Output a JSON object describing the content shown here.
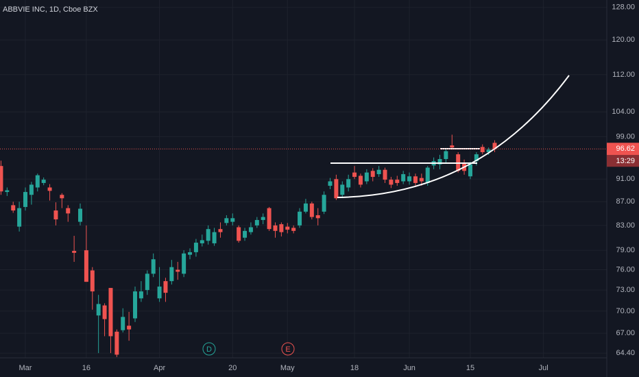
{
  "chart_data": {
    "type": "candlestick",
    "title": "ABBVIE INC, 1D, Cboe BZX",
    "log_scale": true,
    "grid": true,
    "up_color": "#26a69a",
    "down_color": "#ef5350",
    "categories": [
      null,
      null,
      null,
      null,
      "Mar",
      null,
      null,
      null,
      null,
      null,
      null,
      null,
      null,
      null,
      "16",
      null,
      null,
      null,
      null,
      null,
      null,
      null,
      null,
      null,
      null,
      null,
      "Apr",
      null,
      null,
      null,
      null,
      null,
      null,
      null,
      null,
      null,
      null,
      null,
      "20",
      null,
      null,
      null,
      null,
      null,
      null,
      null,
      null,
      "May",
      null,
      null,
      null,
      null,
      null,
      null,
      null,
      null,
      null,
      null,
      "18",
      null,
      null,
      null,
      null,
      null,
      null,
      null,
      null,
      "Jun",
      null,
      null,
      null,
      null,
      null,
      null,
      null,
      null,
      null,
      "15",
      null,
      null,
      null,
      null,
      null,
      null,
      null,
      null,
      null,
      null,
      null,
      "Jul",
      null,
      null,
      null,
      null,
      null,
      null,
      null,
      null,
      null,
      null
    ],
    "open": [
      93.4,
      88.7,
      86.4,
      82.8,
      86.1,
      88.2,
      89.5,
      90.3,
      89.5,
      85.5,
      88.2,
      85.9,
      78.9,
      83.6,
      79.0,
      75.9,
      69.4,
      70.8,
      73.3,
      67.2,
      67.4,
      68.0,
      69.0,
      71.8,
      73.0,
      75.4,
      71.8,
      74.3,
      74.3,
      76.0,
      75.4,
      78.3,
      78.7,
      80.1,
      80.5,
      80.1,
      82.4,
      83.4,
      83.6,
      82.7,
      81.0,
      81.9,
      83.0,
      83.9,
      85.9,
      83.0,
      83.2,
      82.8,
      82.6,
      83.0,
      85.3,
      86.7,
      84.7,
      85.3,
      89.8,
      91.0,
      88.2,
      89.5,
      92.2,
      91.6,
      90.6,
      92.5,
      91.9,
      92.7,
      90.9,
      90.9,
      90.6,
      90.6,
      91.5,
      91.2,
      90.3,
      93.5,
      93.7,
      94.7,
      97.3,
      95.6,
      94.0,
      91.5,
      94.3,
      97.0,
      96.0,
      97.8,
      null,
      null,
      null,
      null,
      null,
      null,
      null,
      null,
      null,
      null,
      null,
      null,
      null,
      null,
      null,
      null,
      null,
      null
    ],
    "high": [
      94.4,
      89.5,
      87.0,
      87.0,
      89.5,
      90.5,
      92.0,
      91.3,
      90.1,
      86.9,
      88.5,
      86.4,
      81.3,
      86.7,
      83.0,
      76.4,
      72.3,
      71.1,
      73.3,
      67.5,
      70.4,
      69.9,
      73.5,
      74.3,
      75.9,
      78.5,
      76.4,
      74.8,
      77.5,
      77.2,
      79.0,
      79.3,
      80.8,
      81.5,
      83.0,
      82.6,
      83.5,
      84.7,
      85.0,
      83.0,
      82.6,
      83.5,
      84.4,
      85.0,
      86.1,
      83.5,
      83.5,
      83.4,
      83.0,
      85.9,
      87.5,
      87.0,
      85.9,
      88.8,
      91.2,
      91.8,
      90.6,
      91.8,
      93.4,
      92.0,
      92.8,
      93.0,
      93.4,
      93.1,
      91.4,
      91.6,
      92.5,
      92.2,
      92.0,
      92.0,
      93.4,
      95.0,
      95.5,
      96.8,
      99.4,
      96.0,
      94.6,
      94.2,
      96.0,
      97.5,
      96.9,
      98.3,
      null,
      null,
      null,
      null,
      null,
      null,
      null,
      null,
      null,
      null,
      null,
      null,
      null,
      null,
      null,
      null,
      null,
      null
    ],
    "low": [
      88.2,
      88.0,
      85.1,
      82.0,
      85.5,
      86.5,
      88.8,
      89.9,
      87.2,
      83.0,
      85.9,
      83.6,
      77.2,
      83.0,
      74.2,
      70.2,
      64.4,
      66.6,
      64.4,
      63.9,
      67.1,
      66.0,
      68.5,
      71.3,
      72.3,
      74.9,
      71.3,
      71.3,
      73.8,
      74.5,
      74.9,
      77.6,
      78.0,
      79.6,
      79.9,
      79.7,
      81.0,
      83.0,
      83.0,
      80.2,
      80.5,
      81.5,
      82.6,
      83.2,
      82.1,
      81.0,
      81.2,
      81.7,
      81.7,
      82.6,
      85.0,
      84.0,
      83.0,
      84.9,
      89.2,
      87.3,
      87.8,
      88.8,
      91.0,
      89.5,
      90.1,
      90.6,
      91.4,
      90.3,
      89.4,
      89.8,
      90.1,
      90.0,
      89.8,
      89.8,
      89.8,
      92.8,
      92.8,
      94.0,
      96.5,
      92.2,
      91.8,
      91.0,
      93.5,
      95.6,
      95.5,
      96.0,
      null,
      null,
      null,
      null,
      null,
      null,
      null,
      null,
      null,
      null,
      null,
      null,
      null,
      null,
      null,
      null,
      null,
      null
    ],
    "close": [
      88.8,
      89.0,
      85.5,
      85.9,
      88.7,
      90.0,
      91.7,
      90.9,
      88.9,
      84.0,
      87.6,
      85.0,
      78.6,
      85.8,
      74.2,
      72.8,
      71.0,
      68.9,
      66.6,
      64.2,
      69.2,
      67.5,
      72.8,
      72.8,
      75.4,
      77.6,
      73.5,
      72.6,
      76.4,
      75.7,
      78.5,
      78.7,
      80.2,
      80.6,
      82.4,
      81.9,
      81.9,
      84.2,
      84.2,
      80.5,
      82.1,
      82.7,
      83.9,
      84.4,
      82.4,
      82.1,
      81.9,
      82.3,
      82.1,
      85.3,
      86.7,
      84.4,
      84.2,
      88.2,
      90.6,
      87.6,
      90.0,
      91.0,
      91.4,
      90.0,
      92.2,
      91.4,
      92.7,
      90.9,
      90.0,
      90.3,
      91.9,
      91.5,
      90.3,
      90.6,
      93.1,
      94.3,
      94.7,
      96.2,
      96.9,
      92.5,
      92.5,
      93.7,
      95.6,
      96.0,
      96.5,
      96.62,
      null,
      null,
      null,
      null,
      null,
      null,
      null,
      null,
      null,
      null,
      null,
      null,
      null,
      null,
      null,
      null,
      null,
      null
    ],
    "ylim": [
      63.8,
      129.9
    ],
    "yticks": [
      {
        "value": 128,
        "label": "128.00"
      },
      {
        "value": 120,
        "label": "120.00"
      },
      {
        "value": 112,
        "label": "112.00"
      },
      {
        "value": 104,
        "label": "104.00"
      },
      {
        "value": 99,
        "label": "99.00"
      },
      {
        "value": 91,
        "label": "91.00"
      },
      {
        "value": 87,
        "label": "87.00"
      },
      {
        "value": 83,
        "label": "83.00"
      },
      {
        "value": 79,
        "label": "79.00"
      },
      {
        "value": 76,
        "label": "76.00"
      },
      {
        "value": 73,
        "label": "73.00"
      },
      {
        "value": 70,
        "label": "70.00"
      },
      {
        "value": 67,
        "label": "67.00"
      },
      {
        "value": 64.4,
        "label": "64.40"
      }
    ],
    "last_price": 96.62,
    "countdown": "13:29",
    "markers": [
      "D",
      "E"
    ]
  }
}
